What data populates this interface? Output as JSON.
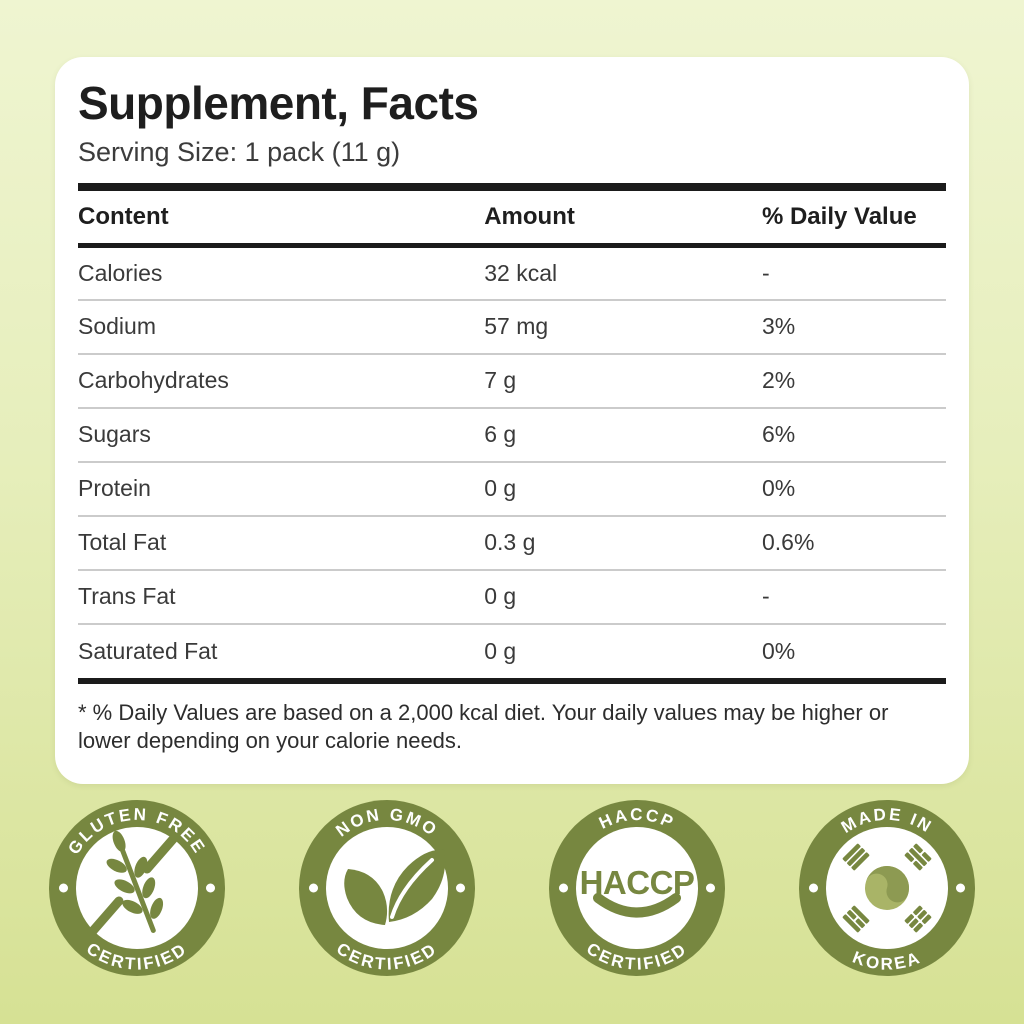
{
  "card": {
    "title": "Supplement, Facts",
    "serving_size": "Serving Size: 1 pack (11 g)",
    "footnote": "* % Daily Values are based on a 2,000 kcal diet. Your daily values may be higher or lower depending on your calorie needs."
  },
  "table": {
    "columns": [
      "Content",
      "Amount",
      "% Daily Value"
    ],
    "rows": [
      {
        "content": "Calories",
        "amount": "32 kcal",
        "daily_value": "-"
      },
      {
        "content": "Sodium",
        "amount": "57 mg",
        "daily_value": "3%"
      },
      {
        "content": "Carbohydrates",
        "amount": "7 g",
        "daily_value": "2%"
      },
      {
        "content": "Sugars",
        "amount": "6 g",
        "daily_value": "6%"
      },
      {
        "content": "Protein",
        "amount": "0 g",
        "daily_value": "0%"
      },
      {
        "content": "Total Fat",
        "amount": "0.3 g",
        "daily_value": "0.6%"
      },
      {
        "content": "Trans Fat",
        "amount": "0 g",
        "daily_value": "-"
      },
      {
        "content": "Saturated Fat",
        "amount": "0 g",
        "daily_value": "0%"
      }
    ]
  },
  "badges": [
    {
      "top": "GLUTEN FREE",
      "bottom": "CERTIFIED",
      "icon": "wheat-crossed-icon"
    },
    {
      "top": "NON GMO",
      "bottom": "CERTIFIED",
      "icon": "leaves-icon"
    },
    {
      "top": "HACCP",
      "bottom": "CERTIFIED",
      "center": "HACCP",
      "icon": "haccp-swoosh-icon"
    },
    {
      "top": "MADE IN",
      "bottom": "KOREA",
      "icon": "korea-taegeuk-icon"
    }
  ],
  "colors": {
    "badge_green": "#778740",
    "taegeuk_dark": "#8d9a52",
    "taegeuk_light": "#a9b467",
    "background_top": "#eff5d1",
    "background_bottom": "#d6e194"
  }
}
